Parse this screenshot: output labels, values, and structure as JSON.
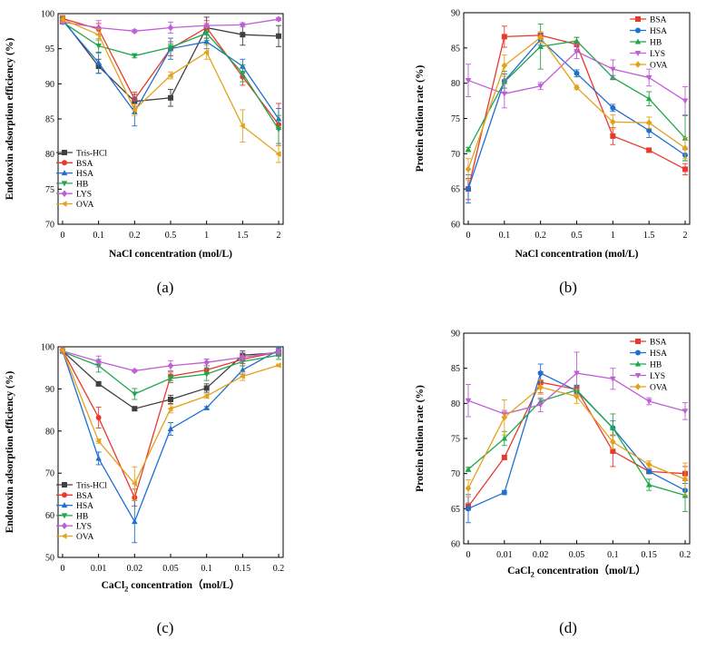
{
  "chart_data": [
    {
      "panel": "(a)",
      "type": "line",
      "ylabel": "Endotoxin adsorption efficiency (%)",
      "xlabel": "NaCl concentration (mol/L)",
      "categories": [
        "0",
        "0.1",
        "0.2",
        "0.5",
        "1",
        "1.5",
        "2"
      ],
      "ylim": [
        70,
        100
      ],
      "yticks": [
        70,
        75,
        80,
        85,
        90,
        95,
        100
      ],
      "legend_position": "lower-left",
      "series": [
        {
          "name": "Tris-HCl",
          "color": "#404040",
          "marker": "square",
          "values": [
            99.2,
            92.5,
            87.5,
            88.0,
            98.0,
            97.0,
            96.8
          ],
          "err": [
            0.5,
            1.0,
            1.0,
            1.2,
            1.5,
            1.5,
            1.5
          ]
        },
        {
          "name": "BSA",
          "color": "#e8392e",
          "marker": "circle",
          "values": [
            99.3,
            97.8,
            87.8,
            95.0,
            98.0,
            91.0,
            84.2
          ],
          "err": [
            0.4,
            0.8,
            1.0,
            1.0,
            1.0,
            1.2,
            3.0
          ]
        },
        {
          "name": "HSA",
          "color": "#1f6fd1",
          "marker": "triangle-up",
          "values": [
            99.0,
            93.0,
            86.0,
            95.0,
            96.0,
            92.5,
            85.0
          ],
          "err": [
            0.4,
            1.5,
            2.0,
            1.5,
            1.0,
            1.0,
            1.5
          ]
        },
        {
          "name": "HB",
          "color": "#21a64b",
          "marker": "triangle-down",
          "values": [
            98.8,
            95.4,
            94.0,
            95.2,
            97.2,
            91.5,
            83.5
          ],
          "err": [
            0.3,
            1.0,
            0.3,
            0.5,
            1.0,
            1.2,
            2.0
          ]
        },
        {
          "name": "LYS",
          "color": "#c05ed6",
          "marker": "diamond",
          "values": [
            98.8,
            98.0,
            97.5,
            98.0,
            98.3,
            98.4,
            99.2
          ],
          "err": [
            0.3,
            1.0,
            0.2,
            0.8,
            0.3,
            0.3,
            0.2
          ]
        },
        {
          "name": "OVA",
          "color": "#e3a21a",
          "marker": "triangle-left",
          "values": [
            99.2,
            97.0,
            86.3,
            91.2,
            94.5,
            84.0,
            80.0
          ],
          "err": [
            0.4,
            0.8,
            0.8,
            0.5,
            1.0,
            2.3,
            1.2
          ]
        }
      ]
    },
    {
      "panel": "(b)",
      "type": "line",
      "ylabel": "Protein elution rate (%)",
      "xlabel": "NaCl concentration (mol/L)",
      "categories": [
        "0",
        "0.1",
        "0.2",
        "0.5",
        "1",
        "1.5",
        "2"
      ],
      "ylim": [
        60,
        90
      ],
      "yticks": [
        60,
        65,
        70,
        75,
        80,
        85,
        90
      ],
      "legend_position": "top-right",
      "series": [
        {
          "name": "BSA",
          "color": "#e8392e",
          "marker": "square",
          "values": [
            65.0,
            86.6,
            86.8,
            85.5,
            72.5,
            70.5,
            67.8
          ],
          "err": [
            1.5,
            1.5,
            0.5,
            1.0,
            1.2,
            0.3,
            0.8
          ]
        },
        {
          "name": "HSA",
          "color": "#1f6fd1",
          "marker": "circle",
          "values": [
            65.0,
            80.3,
            86.2,
            81.4,
            76.5,
            73.3,
            69.8
          ],
          "err": [
            2.0,
            1.0,
            0.8,
            0.5,
            0.5,
            1.0,
            0.8
          ]
        },
        {
          "name": "HB",
          "color": "#21a64b",
          "marker": "triangle-up",
          "values": [
            70.6,
            80.2,
            85.2,
            86.0,
            80.8,
            77.8,
            72.2
          ],
          "err": [
            0.3,
            1.5,
            3.2,
            0.5,
            0.3,
            1.0,
            3.2
          ]
        },
        {
          "name": "LYS",
          "color": "#c05ed6",
          "marker": "triangle-down",
          "values": [
            80.4,
            78.5,
            79.6,
            84.5,
            82.0,
            80.8,
            77.5
          ],
          "err": [
            2.3,
            2.0,
            0.5,
            1.0,
            1.3,
            1.2,
            2.0
          ]
        },
        {
          "name": "OVA",
          "color": "#e3a21a",
          "marker": "diamond",
          "values": [
            67.8,
            82.5,
            86.5,
            79.4,
            74.5,
            74.4,
            70.8
          ],
          "err": [
            1.5,
            1.5,
            0.8,
            0.3,
            1.0,
            0.8,
            1.5
          ]
        }
      ]
    },
    {
      "panel": "(c)",
      "type": "line",
      "ylabel": "Endotoxin adsorption efficiency (%)",
      "xlabel_prefix": "CaCl",
      "xlabel_sub": "2",
      "xlabel_suffix": " concentration（mol/L）",
      "categories": [
        "0",
        "0.01",
        "0.02",
        "0.05",
        "0.1",
        "0.15",
        "0.2"
      ],
      "ylim": [
        50,
        100
      ],
      "yticks": [
        50,
        60,
        70,
        80,
        90,
        100
      ],
      "legend_position": "lower-left",
      "series": [
        {
          "name": "Tris-HCl",
          "color": "#404040",
          "marker": "square",
          "values": [
            99.0,
            91.2,
            85.3,
            87.5,
            90.2,
            98.0,
            98.6
          ],
          "err": [
            0.3,
            0.5,
            0.5,
            1.0,
            1.0,
            1.0,
            0.8
          ]
        },
        {
          "name": "BSA",
          "color": "#e8392e",
          "marker": "circle",
          "values": [
            99.2,
            83.2,
            64.2,
            93.0,
            94.5,
            97.0,
            98.8
          ],
          "err": [
            0.3,
            2.5,
            2.0,
            1.0,
            1.0,
            1.0,
            0.5
          ]
        },
        {
          "name": "HSA",
          "color": "#1f6fd1",
          "marker": "triangle-up",
          "values": [
            99.0,
            73.5,
            58.5,
            80.5,
            85.5,
            94.5,
            99.2
          ],
          "err": [
            0.3,
            1.5,
            5.0,
            1.5,
            0.3,
            1.0,
            0.5
          ]
        },
        {
          "name": "HB",
          "color": "#21a64b",
          "marker": "triangle-down",
          "values": [
            98.8,
            95.5,
            88.8,
            92.5,
            93.5,
            96.5,
            98.0
          ],
          "err": [
            0.3,
            1.5,
            1.3,
            1.0,
            1.5,
            1.0,
            1.0
          ]
        },
        {
          "name": "LYS",
          "color": "#c05ed6",
          "marker": "diamond",
          "values": [
            99.0,
            96.5,
            94.3,
            95.5,
            96.3,
            97.5,
            98.8
          ],
          "err": [
            0.3,
            1.3,
            0.3,
            1.2,
            0.8,
            1.0,
            0.5
          ]
        },
        {
          "name": "OVA",
          "color": "#e3a21a",
          "marker": "triangle-left",
          "values": [
            99.2,
            77.6,
            67.5,
            85.3,
            88.3,
            93.0,
            95.6
          ],
          "err": [
            0.3,
            0.5,
            4.0,
            1.0,
            0.5,
            1.0,
            0.3
          ]
        }
      ]
    },
    {
      "panel": "(d)",
      "type": "line",
      "ylabel": "Protein elution rate (%)",
      "xlabel_prefix": "CaCl",
      "xlabel_sub": "2",
      "xlabel_suffix": " concentration（mol/L）",
      "categories": [
        "0",
        "0.01",
        "0.02",
        "0.05",
        "0.1",
        "0.15",
        "0.2"
      ],
      "ylim": [
        60,
        90
      ],
      "yticks": [
        60,
        65,
        70,
        75,
        80,
        85,
        90
      ],
      "legend_position": "top-right",
      "series": [
        {
          "name": "BSA",
          "color": "#e8392e",
          "marker": "square",
          "values": [
            65.3,
            72.3,
            83.0,
            82.0,
            73.2,
            70.3,
            70.0
          ],
          "err": [
            0.5,
            0.3,
            1.5,
            0.5,
            2.2,
            0.3,
            1.0
          ]
        },
        {
          "name": "HSA",
          "color": "#1f6fd1",
          "marker": "circle",
          "values": [
            65.0,
            67.3,
            84.3,
            81.8,
            76.5,
            70.3,
            67.6
          ],
          "err": [
            2.0,
            0.3,
            1.3,
            0.8,
            1.0,
            0.3,
            1.0
          ]
        },
        {
          "name": "HB",
          "color": "#21a64b",
          "marker": "triangle-up",
          "values": [
            70.6,
            75.0,
            80.3,
            81.9,
            76.5,
            68.4,
            66.9
          ],
          "err": [
            0.3,
            1.0,
            0.3,
            0.5,
            2.0,
            0.8,
            2.3
          ]
        },
        {
          "name": "LYS",
          "color": "#c05ed6",
          "marker": "triangle-down",
          "values": [
            80.4,
            78.5,
            79.8,
            84.3,
            83.5,
            80.3,
            78.9
          ],
          "err": [
            2.3,
            0.5,
            1.0,
            3.0,
            1.5,
            0.5,
            1.2
          ]
        },
        {
          "name": "OVA",
          "color": "#e3a21a",
          "marker": "diamond",
          "values": [
            67.9,
            78.0,
            82.3,
            81.0,
            74.5,
            71.3,
            69.2
          ],
          "err": [
            1.2,
            2.5,
            1.0,
            1.0,
            1.0,
            0.5,
            2.3
          ]
        }
      ]
    }
  ]
}
